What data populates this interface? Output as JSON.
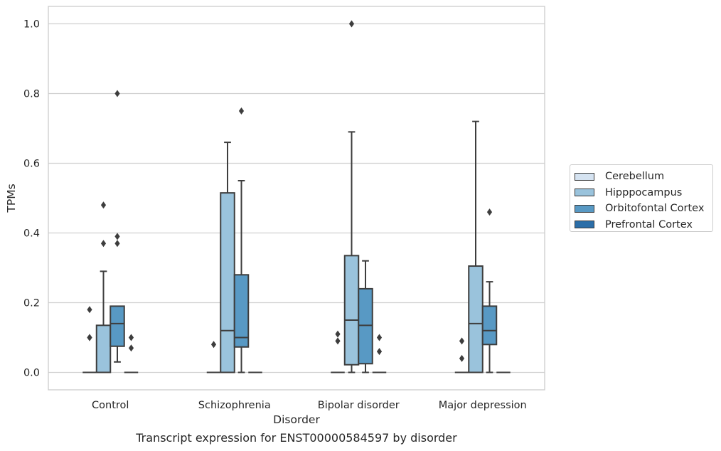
{
  "chart_data": {
    "type": "box",
    "xlabel": "Disorder",
    "ylabel": "TPMs",
    "caption": "Transcript expression for ENST00000584597 by disorder",
    "ylim": [
      -0.05,
      1.05
    ],
    "yticks": [
      "0.0",
      "0.2",
      "0.4",
      "0.6",
      "0.8",
      "1.0"
    ],
    "grid": true,
    "legend_position": "right",
    "categories": [
      "Control",
      "Schizophrenia",
      "Bipolar disorder",
      "Major depression"
    ],
    "series": [
      {
        "name": "Cerebellum",
        "color": "#d5e3f1",
        "boxes": [
          {
            "min": 0,
            "q1": 0,
            "median": 0,
            "q3": 0,
            "max": 0,
            "outliers": [
              0.1,
              0.1,
              0.18
            ]
          },
          {
            "min": 0,
            "q1": 0,
            "median": 0,
            "q3": 0,
            "max": 0,
            "outliers": [
              0.08
            ]
          },
          {
            "min": 0,
            "q1": 0,
            "median": 0,
            "q3": 0,
            "max": 0,
            "outliers": [
              0.09,
              0.11
            ]
          },
          {
            "min": 0,
            "q1": 0,
            "median": 0,
            "q3": 0,
            "max": 0,
            "outliers": [
              0.04,
              0.09
            ]
          }
        ]
      },
      {
        "name": "Hipppocampus",
        "color": "#9ac3dc",
        "boxes": [
          {
            "min": 0,
            "q1": 0,
            "median": 0,
            "q3": 0.135,
            "max": 0.29,
            "outliers": [
              0.37,
              0.48
            ]
          },
          {
            "min": 0,
            "q1": 0,
            "median": 0.12,
            "q3": 0.515,
            "max": 0.66,
            "outliers": []
          },
          {
            "min": 0,
            "q1": 0.022,
            "median": 0.15,
            "q3": 0.335,
            "max": 0.69,
            "outliers": [
              1.0
            ]
          },
          {
            "min": 0,
            "q1": 0,
            "median": 0.14,
            "q3": 0.305,
            "max": 0.72,
            "outliers": []
          }
        ]
      },
      {
        "name": "Orbitofontal Cortex",
        "color": "#5899c4",
        "boxes": [
          {
            "min": 0.03,
            "q1": 0.075,
            "median": 0.14,
            "q3": 0.19,
            "max": 0.19,
            "outliers": [
              0.37,
              0.39,
              0.8
            ]
          },
          {
            "min": 0,
            "q1": 0.073,
            "median": 0.1,
            "q3": 0.28,
            "max": 0.55,
            "outliers": [
              0.75
            ]
          },
          {
            "min": 0,
            "q1": 0.025,
            "median": 0.135,
            "q3": 0.24,
            "max": 0.32,
            "outliers": []
          },
          {
            "min": 0,
            "q1": 0.08,
            "median": 0.12,
            "q3": 0.19,
            "max": 0.26,
            "outliers": [
              0.46
            ]
          }
        ]
      },
      {
        "name": "Prefrontal Cortex",
        "color": "#2b6ea8",
        "boxes": [
          {
            "min": 0,
            "q1": 0,
            "median": 0,
            "q3": 0,
            "max": 0,
            "outliers": [
              0.07,
              0.1
            ]
          },
          {
            "min": 0,
            "q1": 0,
            "median": 0,
            "q3": 0,
            "max": 0,
            "outliers": []
          },
          {
            "min": 0,
            "q1": 0,
            "median": 0,
            "q3": 0,
            "max": 0,
            "outliers": [
              0.06,
              0.1
            ]
          },
          {
            "min": 0,
            "q1": 0,
            "median": 0,
            "q3": 0,
            "max": 0,
            "outliers": []
          }
        ]
      }
    ]
  }
}
